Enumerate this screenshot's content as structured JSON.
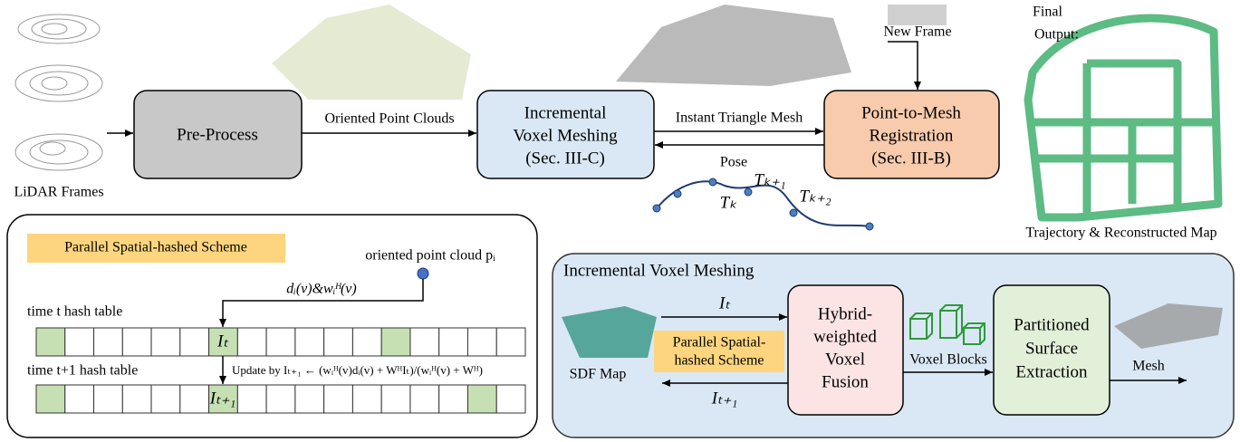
{
  "inputs": {
    "lidar_label": "LiDAR Frames",
    "new_frame_label": "New Frame"
  },
  "pipeline": {
    "preprocess": "Pre-Process",
    "oriented_point_clouds": "Oriented Point Clouds",
    "meshing": [
      "Incremental",
      "Voxel Meshing",
      "(Sec. III-C)"
    ],
    "instant_triangle_mesh": "Instant Triangle Mesh",
    "pose": "Pose",
    "registration": [
      "Point-to-Mesh",
      "Registration",
      "(Sec. III-B)"
    ],
    "poses": [
      "Tₖ",
      "Tₖ₊₁",
      "Tₖ₊₂"
    ]
  },
  "output": {
    "title": [
      "Final",
      "Output:"
    ],
    "caption": "Trajectory & Reconstructed Map"
  },
  "hash_panel": {
    "title": "Parallel Spatial-hashed Scheme",
    "point_cloud": "oriented point cloud pᵢ",
    "sdf_weight": "dᵢ(v)&wᵢᴴ(v)",
    "row_t": "time t  hash table",
    "row_t1": "time t+1 hash table",
    "cell_t": "Iₜ",
    "cell_t1": "Iₜ₊₁",
    "update": "Update by Iₜ₊₁ ← (wᵢᴴ(v)dᵢ(v) + WᴴIₜ)/(wᵢᴴ(v) + Wᴴ)"
  },
  "meshing_panel": {
    "title": "Incremental Voxel Meshing",
    "sdf_map": "SDF Map",
    "i_t": "Iₜ",
    "i_t1": "Iₜ₊₁",
    "scheme": [
      "Parallel Spatial-",
      "hashed Scheme"
    ],
    "fusion": [
      "Hybrid-",
      "weighted",
      "Voxel",
      "Fusion"
    ],
    "voxel_blocks": "Voxel Blocks",
    "extraction": [
      "Partitioned",
      "Surface",
      "Extraction"
    ],
    "mesh": "Mesh"
  }
}
